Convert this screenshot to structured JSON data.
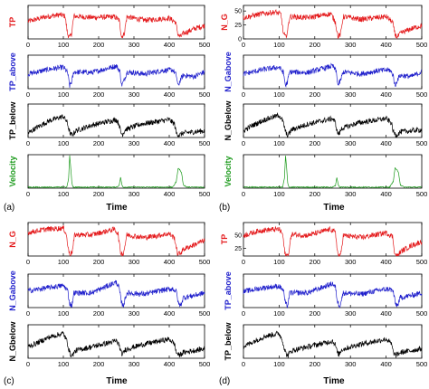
{
  "panels": [
    {
      "letter": "(a)",
      "xlabel": "Time"
    },
    {
      "letter": "(b)",
      "xlabel": "Time"
    },
    {
      "letter": "(c)",
      "xlabel": "Time"
    },
    {
      "letter": "(d)",
      "xlabel": "Time"
    }
  ],
  "colors": {
    "red": "#e41a1c",
    "blue": "#1f1fcc",
    "black": "#000000",
    "green": "#1b9a1b"
  },
  "chart_data": [
    {
      "panel": "(a)",
      "type": "line",
      "xlabel": "Time",
      "x_ticks": [
        0,
        100,
        200,
        300,
        400,
        500
      ],
      "xlim": [
        0,
        500
      ],
      "subplots": [
        {
          "ylabel": "TP",
          "color": "red",
          "y_ticks": [],
          "ylim": [
            0,
            50
          ],
          "x": [
            0,
            50,
            90,
            105,
            112,
            118,
            123,
            130,
            180,
            245,
            258,
            265,
            272,
            280,
            330,
            400,
            418,
            425,
            432,
            440,
            470,
            500
          ],
          "y": [
            26,
            33,
            36,
            34,
            7,
            2,
            8,
            34,
            32,
            33,
            28,
            3,
            7,
            33,
            28,
            31,
            25,
            6,
            3,
            8,
            15,
            20
          ]
        },
        {
          "ylabel": "TP_above",
          "color": "blue",
          "y_ticks": [],
          "ylim": [
            0,
            50
          ],
          "x": [
            0,
            60,
            100,
            112,
            118,
            123,
            130,
            180,
            250,
            260,
            265,
            272,
            280,
            330,
            380,
            410,
            420,
            425,
            432,
            440,
            470,
            500
          ],
          "y": [
            22,
            29,
            32,
            24,
            4,
            10,
            25,
            24,
            34,
            26,
            5,
            12,
            25,
            22,
            27,
            28,
            20,
            3,
            14,
            20,
            18,
            25
          ]
        },
        {
          "ylabel": "TP_below",
          "color": "black",
          "y_ticks": [],
          "ylim": [
            0,
            30
          ],
          "x": [
            0,
            20,
            60,
            100,
            110,
            115,
            120,
            125,
            135,
            180,
            250,
            258,
            263,
            268,
            275,
            320,
            400,
            415,
            420,
            428,
            440,
            500
          ],
          "y": [
            4,
            8,
            15,
            19,
            14,
            8,
            3,
            2,
            6,
            11,
            16,
            12,
            4,
            3,
            7,
            12,
            16,
            12,
            4,
            2,
            4,
            6
          ]
        },
        {
          "ylabel": "Velocity",
          "color": "green",
          "y_ticks": [],
          "ylim": [
            0,
            1
          ],
          "x": [
            0,
            110,
            115,
            118,
            121,
            124,
            128,
            135,
            250,
            258,
            262,
            266,
            270,
            280,
            410,
            420,
            425,
            430,
            435,
            440,
            450,
            500
          ],
          "y": [
            0.03,
            0.03,
            0.3,
            0.97,
            0.6,
            0.15,
            0.03,
            0.03,
            0.03,
            0.08,
            0.32,
            0.1,
            0.03,
            0.03,
            0.03,
            0.2,
            0.6,
            0.55,
            0.45,
            0.1,
            0.03,
            0.03
          ]
        }
      ]
    },
    {
      "panel": "(b)",
      "type": "line",
      "xlabel": "Time",
      "x_ticks": [
        0,
        100,
        200,
        300,
        400,
        500
      ],
      "xlim": [
        0,
        500
      ],
      "subplots": [
        {
          "ylabel": "N_G",
          "color": "red",
          "y_ticks": [
            0,
            25,
            50
          ],
          "ylim": [
            0,
            60
          ],
          "x": [
            0,
            50,
            90,
            105,
            112,
            118,
            123,
            130,
            180,
            245,
            258,
            265,
            272,
            280,
            330,
            400,
            418,
            425,
            432,
            440,
            470,
            500
          ],
          "y": [
            38,
            45,
            48,
            44,
            10,
            3,
            12,
            40,
            38,
            45,
            30,
            4,
            8,
            40,
            35,
            40,
            30,
            8,
            3,
            10,
            18,
            24
          ]
        },
        {
          "ylabel": "N_Gabove",
          "color": "blue",
          "y_ticks": [],
          "ylim": [
            0,
            50
          ],
          "x": [
            0,
            60,
            100,
            112,
            118,
            123,
            130,
            180,
            250,
            260,
            265,
            272,
            280,
            330,
            380,
            410,
            420,
            425,
            432,
            440,
            470,
            500
          ],
          "y": [
            22,
            29,
            32,
            24,
            4,
            10,
            25,
            24,
            34,
            26,
            5,
            12,
            25,
            22,
            27,
            28,
            20,
            3,
            14,
            20,
            18,
            25
          ]
        },
        {
          "ylabel": "N_Gbelow",
          "color": "black",
          "y_ticks": [],
          "ylim": [
            0,
            30
          ],
          "x": [
            0,
            20,
            60,
            100,
            110,
            115,
            120,
            125,
            135,
            180,
            250,
            258,
            263,
            268,
            275,
            320,
            400,
            415,
            420,
            428,
            440,
            500
          ],
          "y": [
            6,
            10,
            16,
            20,
            15,
            9,
            3,
            2,
            7,
            12,
            17,
            13,
            5,
            3,
            8,
            13,
            17,
            13,
            5,
            2,
            5,
            7
          ]
        },
        {
          "ylabel": "Velocity",
          "color": "green",
          "y_ticks": [],
          "ylim": [
            0,
            1
          ],
          "x": [
            0,
            110,
            115,
            118,
            121,
            124,
            128,
            135,
            250,
            258,
            262,
            266,
            270,
            280,
            410,
            420,
            425,
            430,
            435,
            440,
            450,
            500
          ],
          "y": [
            0.03,
            0.03,
            0.3,
            0.97,
            0.6,
            0.15,
            0.03,
            0.03,
            0.03,
            0.08,
            0.32,
            0.1,
            0.03,
            0.03,
            0.03,
            0.2,
            0.6,
            0.55,
            0.45,
            0.1,
            0.03,
            0.03
          ]
        }
      ]
    },
    {
      "panel": "(c)",
      "type": "line",
      "xlabel": "Time",
      "x_ticks": [
        0,
        100,
        200,
        300,
        400,
        500
      ],
      "xlim": [
        0,
        500
      ],
      "subplots": [
        {
          "ylabel": "N_G",
          "color": "red",
          "y_ticks": [],
          "ylim": [
            0,
            60
          ],
          "x": [
            0,
            50,
            100,
            108,
            114,
            120,
            126,
            132,
            180,
            245,
            255,
            262,
            270,
            280,
            330,
            400,
            415,
            423,
            430,
            440,
            470,
            500
          ],
          "y": [
            42,
            48,
            50,
            40,
            12,
            3,
            10,
            38,
            38,
            48,
            40,
            6,
            4,
            38,
            33,
            40,
            32,
            5,
            4,
            12,
            20,
            28
          ]
        },
        {
          "ylabel": "N_Gabove",
          "color": "blue",
          "y_ticks": [],
          "ylim": [
            0,
            50
          ],
          "x": [
            0,
            60,
            100,
            112,
            118,
            124,
            130,
            180,
            250,
            258,
            264,
            270,
            280,
            330,
            380,
            410,
            420,
            426,
            432,
            440,
            470,
            500
          ],
          "y": [
            25,
            30,
            33,
            26,
            6,
            3,
            22,
            22,
            38,
            30,
            8,
            3,
            22,
            20,
            26,
            28,
            24,
            6,
            3,
            15,
            18,
            22
          ]
        },
        {
          "ylabel": "N_Gbelow",
          "color": "black",
          "y_ticks": [],
          "ylim": [
            0,
            35
          ],
          "x": [
            0,
            20,
            60,
            100,
            110,
            115,
            120,
            125,
            135,
            180,
            250,
            258,
            263,
            268,
            275,
            320,
            400,
            415,
            420,
            428,
            440,
            500
          ],
          "y": [
            12,
            15,
            22,
            26,
            18,
            10,
            4,
            3,
            8,
            12,
            18,
            14,
            6,
            4,
            9,
            14,
            20,
            15,
            6,
            3,
            6,
            10
          ]
        }
      ]
    },
    {
      "panel": "(d)",
      "type": "line",
      "xlabel": "Time",
      "x_ticks": [
        0,
        100,
        200,
        300,
        400,
        500
      ],
      "xlim": [
        0,
        500
      ],
      "subplots": [
        {
          "ylabel": "TP",
          "color": "red",
          "y_ticks": [
            25,
            50
          ],
          "ylim": [
            10,
            75
          ],
          "x": [
            0,
            50,
            100,
            110,
            116,
            122,
            128,
            134,
            180,
            245,
            258,
            265,
            272,
            280,
            330,
            400,
            418,
            425,
            432,
            440,
            470,
            500
          ],
          "y": [
            50,
            60,
            62,
            52,
            15,
            10,
            18,
            52,
            50,
            62,
            55,
            12,
            10,
            50,
            46,
            55,
            48,
            12,
            10,
            18,
            30,
            38
          ]
        },
        {
          "ylabel": "TP_above",
          "color": "blue",
          "y_ticks": [],
          "ylim": [
            0,
            50
          ],
          "x": [
            0,
            60,
            100,
            112,
            118,
            124,
            130,
            180,
            250,
            258,
            264,
            270,
            280,
            330,
            380,
            410,
            420,
            426,
            432,
            440,
            470,
            500
          ],
          "y": [
            24,
            30,
            32,
            26,
            5,
            3,
            22,
            22,
            36,
            30,
            8,
            3,
            22,
            20,
            26,
            28,
            24,
            6,
            3,
            15,
            18,
            22
          ]
        },
        {
          "ylabel": "TP_below",
          "color": "black",
          "y_ticks": [],
          "ylim": [
            0,
            35
          ],
          "x": [
            0,
            20,
            60,
            100,
            110,
            115,
            120,
            125,
            135,
            180,
            250,
            258,
            263,
            268,
            275,
            320,
            400,
            415,
            420,
            428,
            440,
            500
          ],
          "y": [
            12,
            16,
            23,
            26,
            18,
            10,
            4,
            3,
            8,
            12,
            18,
            14,
            6,
            4,
            9,
            14,
            20,
            15,
            6,
            3,
            6,
            10
          ]
        }
      ]
    }
  ]
}
